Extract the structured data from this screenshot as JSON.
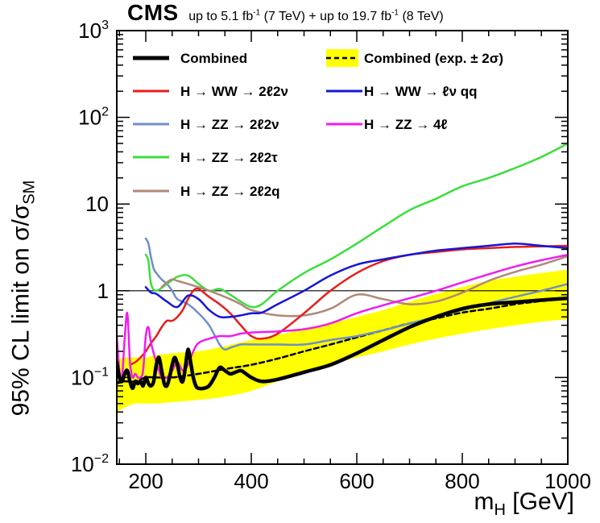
{
  "header": {
    "experiment": "CMS",
    "lumi_8tev_text": "(8 TeV)",
    "lumi_7tev_text": "(7 TeV)",
    "lumi_prefix": "up to 5.1 fb",
    "lumi_mid": "+ up to 19.7 fb",
    "lumi_exp": "-1"
  },
  "axes": {
    "y_title_main": "95% CL limit on σ/σ",
    "y_title_sub": "SM",
    "x_title_main": "m",
    "x_title_sub": "H",
    "x_title_unit": "[GeV]"
  },
  "chart_data": {
    "type": "line",
    "xlim": [
      145,
      1000
    ],
    "ylim": [
      0.01,
      1000
    ],
    "y_scale": "log",
    "x_ticks": [
      200,
      400,
      600,
      800,
      1000
    ],
    "x_tick_labels": [
      "200",
      "400",
      "600",
      "800",
      "1000"
    ],
    "y_ticks": [
      0.01,
      0.1,
      1,
      10,
      100,
      1000
    ],
    "y_tick_labels": [
      {
        "base": "10",
        "exp": "−2"
      },
      {
        "base": "10",
        "exp": "−1"
      },
      {
        "base": "1",
        "exp": ""
      },
      {
        "base": "10",
        "exp": ""
      },
      {
        "base": "10",
        "exp": "2"
      },
      {
        "base": "10",
        "exp": "3"
      }
    ],
    "reference_line": 1,
    "legend_placement": "top-left",
    "band": {
      "name": "Combined (exp. ± 2σ)",
      "color": "#ffff00",
      "x": [
        145,
        160,
        180,
        200,
        220,
        250,
        300,
        350,
        400,
        450,
        500,
        550,
        600,
        650,
        700,
        750,
        800,
        850,
        900,
        950,
        1000
      ],
      "lo": [
        0.04,
        0.045,
        0.05,
        0.05,
        0.05,
        0.052,
        0.055,
        0.06,
        0.07,
        0.09,
        0.11,
        0.14,
        0.17,
        0.2,
        0.24,
        0.28,
        0.32,
        0.36,
        0.4,
        0.44,
        0.47
      ],
      "hi": [
        0.16,
        0.17,
        0.17,
        0.17,
        0.18,
        0.19,
        0.2,
        0.23,
        0.27,
        0.31,
        0.36,
        0.42,
        0.5,
        0.6,
        0.75,
        0.92,
        1.1,
        1.3,
        1.45,
        1.6,
        1.75
      ]
    },
    "series": [
      {
        "name": "Combined (exp. ± 2σ)",
        "color": "#000000",
        "dash": "6,4",
        "width": 2.5,
        "x": [
          145,
          160,
          180,
          200,
          220,
          250,
          300,
          350,
          400,
          450,
          500,
          550,
          600,
          650,
          700,
          750,
          800,
          850,
          900,
          950,
          1000
        ],
        "y": [
          0.085,
          0.09,
          0.09,
          0.1,
          0.1,
          0.1,
          0.11,
          0.125,
          0.14,
          0.165,
          0.2,
          0.24,
          0.29,
          0.35,
          0.42,
          0.48,
          0.56,
          0.62,
          0.7,
          0.76,
          0.82
        ]
      },
      {
        "name": "H → ZZ → 2ℓ2ν",
        "color": "#6f8fc8",
        "width": 2.5,
        "x": [
          200,
          205,
          210,
          215,
          220,
          230,
          240,
          250,
          260,
          280,
          300,
          320,
          340,
          350,
          360,
          380,
          400,
          450,
          500,
          550,
          600,
          650,
          700,
          750,
          800,
          850,
          900,
          950,
          1000
        ],
        "y": [
          4.0,
          3.5,
          2.4,
          1.8,
          1.6,
          1.35,
          1.2,
          1.0,
          0.8,
          0.7,
          0.55,
          0.4,
          0.24,
          0.21,
          0.22,
          0.24,
          0.24,
          0.24,
          0.24,
          0.27,
          0.3,
          0.35,
          0.42,
          0.5,
          0.6,
          0.72,
          0.85,
          1.0,
          1.2
        ]
      },
      {
        "name": "H → ZZ → 2ℓ2τ",
        "color": "#3cde3c",
        "width": 2.5,
        "x": [
          200,
          205,
          210,
          220,
          240,
          260,
          280,
          300,
          320,
          340,
          360,
          380,
          400,
          420,
          450,
          500,
          550,
          600,
          650,
          700,
          750,
          800,
          850,
          900,
          950,
          1000
        ],
        "y": [
          2.6,
          2.2,
          1.2,
          1.0,
          1.2,
          1.45,
          1.5,
          1.2,
          1.0,
          1.05,
          0.9,
          0.75,
          0.65,
          0.7,
          1.0,
          1.6,
          2.3,
          3.5,
          5.5,
          8.5,
          11.5,
          16.0,
          20.0,
          26.0,
          35.0,
          50.0
        ]
      },
      {
        "name": "H → ZZ → 2ℓ2q",
        "color": "#b08878",
        "width": 2.5,
        "x": [
          230,
          240,
          250,
          260,
          270,
          280,
          300,
          320,
          340,
          360,
          380,
          400,
          450,
          500,
          550,
          600,
          650,
          700,
          750,
          800,
          850,
          900,
          950,
          1000
        ],
        "y": [
          1.1,
          1.25,
          1.35,
          1.3,
          1.25,
          1.2,
          1.1,
          1.0,
          0.9,
          0.8,
          0.7,
          0.6,
          0.52,
          0.52,
          0.62,
          0.9,
          0.8,
          0.7,
          0.75,
          0.95,
          1.3,
          1.65,
          2.0,
          2.5
        ]
      },
      {
        "name": "H → WW → 2ℓ2ν",
        "color": "#e81c1c",
        "width": 2.5,
        "x": [
          170,
          180,
          190,
          200,
          210,
          220,
          230,
          240,
          250,
          260,
          270,
          280,
          290,
          300,
          320,
          340,
          360,
          380,
          400,
          420,
          450,
          500,
          550,
          600,
          650,
          700,
          750,
          800,
          850,
          900,
          950,
          1000
        ],
        "y": [
          0.14,
          0.15,
          0.17,
          0.2,
          0.25,
          0.3,
          0.38,
          0.45,
          0.45,
          0.5,
          0.6,
          0.8,
          1.0,
          1.05,
          0.85,
          0.7,
          0.55,
          0.4,
          0.3,
          0.28,
          0.32,
          0.55,
          1.0,
          1.6,
          2.2,
          2.6,
          2.8,
          3.0,
          3.1,
          3.2,
          3.25,
          3.3
        ]
      },
      {
        "name": "H → WW → ℓν qq",
        "color": "#1515d8",
        "width": 2.5,
        "x": [
          200,
          210,
          220,
          240,
          260,
          280,
          300,
          320,
          340,
          360,
          380,
          400,
          420,
          450,
          500,
          550,
          600,
          650,
          700,
          750,
          800,
          850,
          900,
          950,
          1000
        ],
        "y": [
          1.1,
          0.95,
          0.92,
          0.75,
          0.65,
          0.88,
          0.8,
          0.6,
          0.5,
          0.5,
          0.52,
          0.55,
          0.56,
          0.7,
          1.0,
          1.5,
          2.0,
          2.3,
          2.6,
          2.9,
          3.1,
          3.3,
          3.5,
          3.3,
          3.1
        ]
      },
      {
        "name": "H → ZZ → 4ℓ",
        "color": "#f01cf0",
        "width": 2.5,
        "x": [
          145,
          150,
          155,
          160,
          165,
          170,
          175,
          180,
          185,
          190,
          195,
          200,
          205,
          210,
          220,
          230,
          240,
          250,
          260,
          270,
          280,
          290,
          300,
          320,
          340,
          360,
          380,
          400,
          450,
          500,
          550,
          600,
          650,
          700,
          750,
          800,
          850,
          900,
          950,
          1000
        ],
        "y": [
          0.3,
          0.12,
          0.1,
          0.28,
          0.55,
          0.15,
          0.1,
          0.11,
          0.1,
          0.1,
          0.12,
          0.3,
          0.38,
          0.25,
          0.15,
          0.1,
          0.1,
          0.12,
          0.15,
          0.12,
          0.14,
          0.2,
          0.25,
          0.28,
          0.3,
          0.3,
          0.32,
          0.33,
          0.34,
          0.36,
          0.42,
          0.55,
          0.68,
          0.82,
          1.0,
          1.25,
          1.55,
          1.9,
          2.25,
          2.6
        ]
      },
      {
        "name": "Combined",
        "color": "#000000",
        "width": 4.5,
        "x": [
          145,
          150,
          155,
          160,
          165,
          170,
          175,
          180,
          185,
          190,
          195,
          200,
          205,
          210,
          215,
          220,
          225,
          230,
          235,
          240,
          245,
          250,
          255,
          260,
          265,
          270,
          275,
          280,
          285,
          290,
          295,
          300,
          310,
          320,
          330,
          340,
          350,
          360,
          370,
          380,
          390,
          400,
          420,
          450,
          500,
          550,
          600,
          650,
          700,
          750,
          800,
          850,
          900,
          950,
          1000
        ],
        "y": [
          0.15,
          0.1,
          0.09,
          0.11,
          0.12,
          0.09,
          0.075,
          0.09,
          0.085,
          0.09,
          0.08,
          0.1,
          0.085,
          0.08,
          0.09,
          0.14,
          0.17,
          0.12,
          0.085,
          0.08,
          0.1,
          0.14,
          0.17,
          0.14,
          0.1,
          0.09,
          0.13,
          0.21,
          0.15,
          0.1,
          0.08,
          0.075,
          0.075,
          0.08,
          0.1,
          0.13,
          0.12,
          0.11,
          0.115,
          0.12,
          0.11,
          0.1,
          0.09,
          0.095,
          0.115,
          0.14,
          0.19,
          0.27,
          0.38,
          0.5,
          0.62,
          0.7,
          0.74,
          0.78,
          0.82
        ]
      }
    ],
    "legend": {
      "entries": [
        {
          "text": "Combined",
          "color": "#000000",
          "style": "thick"
        },
        {
          "text": "Combined (exp. ± 2σ)",
          "color": "#000000",
          "style": "band-dashed"
        },
        {
          "text": "H → WW → 2ℓ2ν",
          "color": "#e81c1c",
          "style": "line"
        },
        {
          "text": "H → WW → ℓν qq",
          "color": "#1515d8",
          "style": "line"
        },
        {
          "text": "H → ZZ → 2ℓ2ν",
          "color": "#6f8fc8",
          "style": "line"
        },
        {
          "text": "H → ZZ → 4ℓ",
          "color": "#f01cf0",
          "style": "line"
        },
        {
          "text": "H → ZZ → 2ℓ2τ",
          "color": "#3cde3c",
          "style": "line"
        },
        {
          "text": "H → ZZ → 2ℓ2q",
          "color": "#b08878",
          "style": "line"
        }
      ]
    }
  }
}
